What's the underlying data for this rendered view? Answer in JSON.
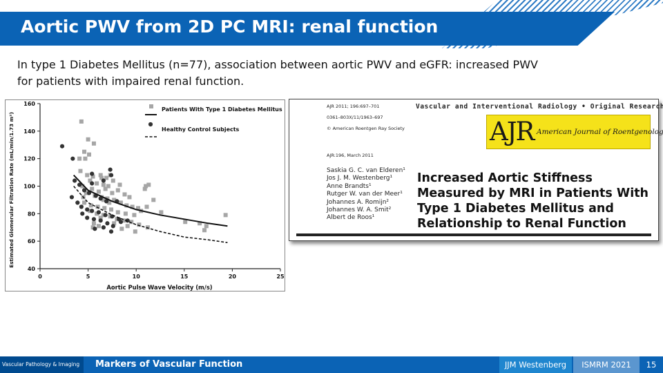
{
  "slide": {
    "title": "Aortic PWV from 2D PC MRI: renal function",
    "intro_line1": "In type 1 Diabetes Mellitus (n=77), association between aortic PWV and eGFR: increased PWV",
    "intro_line2": "for patients with impaired renal function."
  },
  "chart_data": {
    "type": "scatter",
    "xlabel": "Aortic Pulse Wave Velocity (m/s)",
    "ylabel": "Estimated Glomerular Filtration Rate (mL/min/1.73 m²)",
    "xlim": [
      0,
      25
    ],
    "ylim": [
      40,
      160
    ],
    "xticks": [
      "0",
      "5",
      "10",
      "15",
      "20",
      "25"
    ],
    "yticks": [
      "40",
      "60",
      "80",
      "100",
      "120",
      "140",
      "160"
    ],
    "grid": false,
    "legend_position": "top-right",
    "series": [
      {
        "name": "Patients With Type 1 Diabetes Mellitus",
        "marker": "square",
        "color": "#a6a6a6",
        "points": [
          [
            4.3,
            147
          ],
          [
            5.0,
            134
          ],
          [
            5.6,
            131
          ],
          [
            4.6,
            125
          ],
          [
            5.1,
            123
          ],
          [
            4.7,
            120
          ],
          [
            4.1,
            120
          ],
          [
            4.2,
            111
          ],
          [
            4.9,
            108
          ],
          [
            5.5,
            107
          ],
          [
            6.3,
            108
          ],
          [
            6.9,
            106
          ],
          [
            7.3,
            108
          ],
          [
            7.6,
            104
          ],
          [
            5.2,
            104
          ],
          [
            5.9,
            102
          ],
          [
            6.6,
            101
          ],
          [
            7.1,
            100
          ],
          [
            4.4,
            100
          ],
          [
            5.4,
            98
          ],
          [
            6.1,
            96
          ],
          [
            6.8,
            98
          ],
          [
            7.5,
            95
          ],
          [
            8.1,
            97
          ],
          [
            8.8,
            94
          ],
          [
            9.3,
            92
          ],
          [
            4.8,
            95
          ],
          [
            5.7,
            93
          ],
          [
            6.4,
            92
          ],
          [
            7.0,
            91
          ],
          [
            7.7,
            90
          ],
          [
            8.4,
            88
          ],
          [
            9.0,
            86
          ],
          [
            9.6,
            85
          ],
          [
            10.2,
            84
          ],
          [
            4.6,
            88
          ],
          [
            5.3,
            86
          ],
          [
            6.0,
            85
          ],
          [
            6.7,
            84
          ],
          [
            7.4,
            83
          ],
          [
            8.1,
            81
          ],
          [
            8.9,
            80
          ],
          [
            9.8,
            79
          ],
          [
            10.5,
            82
          ],
          [
            11.1,
            85
          ],
          [
            11.8,
            90
          ],
          [
            12.6,
            81
          ],
          [
            10.9,
            98
          ],
          [
            11.3,
            101
          ],
          [
            11.0,
            100
          ],
          [
            5.2,
            82
          ],
          [
            5.9,
            80
          ],
          [
            6.6,
            79
          ],
          [
            7.3,
            78
          ],
          [
            8.0,
            76
          ],
          [
            8.7,
            75
          ],
          [
            9.5,
            74
          ],
          [
            10.3,
            72
          ],
          [
            11.2,
            70
          ],
          [
            6.3,
            77
          ],
          [
            5.6,
            73
          ],
          [
            7.7,
            73
          ],
          [
            9.1,
            71
          ],
          [
            8.5,
            69
          ],
          [
            6.1,
            71
          ],
          [
            5.5,
            70
          ],
          [
            4.5,
            92
          ],
          [
            9.9,
            67
          ],
          [
            16.6,
            73
          ],
          [
            17.1,
            68
          ],
          [
            17.3,
            71
          ],
          [
            19.3,
            79
          ],
          [
            15.1,
            74
          ],
          [
            8.3,
            101
          ],
          [
            6.4,
            106
          ],
          [
            6.6,
            90
          ],
          [
            7.2,
            88
          ]
        ]
      },
      {
        "name": "Healthy Control Subjects",
        "marker": "circle",
        "color": "#333333",
        "points": [
          [
            2.3,
            129
          ],
          [
            3.4,
            120
          ],
          [
            3.6,
            104
          ],
          [
            4.1,
            101
          ],
          [
            4.6,
            97
          ],
          [
            5.1,
            95
          ],
          [
            5.8,
            93
          ],
          [
            6.3,
            91
          ],
          [
            6.9,
            89
          ],
          [
            3.3,
            92
          ],
          [
            3.9,
            88
          ],
          [
            4.3,
            85
          ],
          [
            4.9,
            83
          ],
          [
            5.4,
            82
          ],
          [
            6.1,
            81
          ],
          [
            6.8,
            79
          ],
          [
            7.5,
            78
          ],
          [
            8.2,
            76
          ],
          [
            4.4,
            80
          ],
          [
            4.9,
            77
          ],
          [
            5.6,
            76
          ],
          [
            6.3,
            75
          ],
          [
            7.0,
            73
          ],
          [
            7.6,
            71
          ],
          [
            8.4,
            74
          ],
          [
            9.1,
            75
          ],
          [
            6.6,
            70
          ],
          [
            5.7,
            69
          ],
          [
            7.4,
            67
          ],
          [
            5.4,
            102
          ],
          [
            7.4,
            108
          ],
          [
            7.3,
            112
          ],
          [
            5.4,
            109
          ],
          [
            6.6,
            104
          ],
          [
            8.0,
            89
          ]
        ]
      }
    ],
    "fit_lines": [
      {
        "series": "Patients With Type 1 Diabetes Mellitus",
        "style": "solid",
        "x": [
          3.5,
          5,
          7.5,
          10,
          12.5,
          15,
          17.5,
          19.5
        ],
        "y": [
          108,
          97,
          89,
          83,
          79,
          76,
          73,
          71
        ]
      },
      {
        "series": "Healthy Control Subjects",
        "style": "dashed",
        "x": [
          3.5,
          5,
          7.5,
          10,
          12.5,
          15,
          17.5,
          19.5
        ],
        "y": [
          100,
          88,
          79,
          72,
          67,
          63,
          61,
          59
        ]
      }
    ]
  },
  "paper": {
    "citation_line1": "AJR 2011; 196:697–701",
    "citation_line2": "0361–803X/11/1963–697",
    "citation_line3": "© American Roentgen Ray Society",
    "section": "Vascular and Interventional Radiology • Original Research",
    "journal_abbrev": "AJR",
    "journal_name": "American Journal of Roentgenology",
    "issue": "AJR:196, March 2011",
    "authors": [
      "Saskia G. C. van Elderen¹",
      "Jos J. M. Westenberg¹",
      "Anne Brandts¹",
      "Rutger W. van der Meer¹",
      "Johannes A. Romijn²",
      "Johannes W. A. Smit²",
      "Albert de Roos¹"
    ],
    "title_lines": [
      "Increased Aortic Stiffness",
      "Measured by MRI in Patients With",
      "Type 1 Diabetes Mellitus and",
      "Relationship to Renal Function"
    ]
  },
  "footer": {
    "group": "Vascular Pathology & Imaging",
    "topic": "Markers of Vascular Function",
    "author": "JJM Westenberg",
    "conference": "ISMRM 2021",
    "page": "15"
  }
}
